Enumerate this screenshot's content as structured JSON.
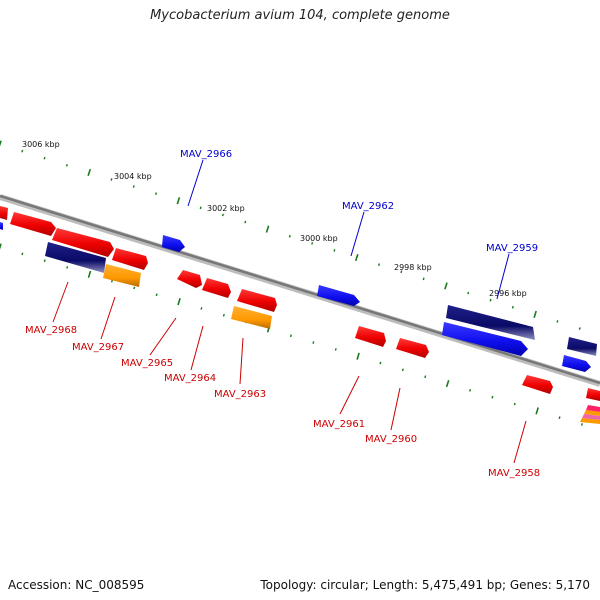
{
  "title": "Mycobacterium avium 104, complete genome",
  "footer": {
    "accession": "Accession: NC_008595",
    "summary": "Topology: circular; Length: 5,475,491 bp; Genes: 5,170"
  },
  "colors": {
    "backbone": "#888888",
    "tick_green": "#1a7a1a",
    "label_blue": "#0000cc",
    "label_red": "#cc0000"
  },
  "ticks": [
    {
      "label": "3006 kbp"
    },
    {
      "label": "3004 kbp"
    },
    {
      "label": "3002 kbp"
    },
    {
      "label": "3000 kbp"
    },
    {
      "label": "2998 kbp"
    },
    {
      "label": "2996 kbp"
    }
  ],
  "genes": [
    {
      "label": "MAV_2966",
      "strand": "blue"
    },
    {
      "label": "MAV_2962",
      "strand": "blue"
    },
    {
      "label": "MAV_2959",
      "strand": "blue"
    },
    {
      "label": "MAV_2968",
      "strand": "red"
    },
    {
      "label": "MAV_2967",
      "strand": "red"
    },
    {
      "label": "MAV_2965",
      "strand": "red"
    },
    {
      "label": "MAV_2964",
      "strand": "red"
    },
    {
      "label": "MAV_2963",
      "strand": "red"
    },
    {
      "label": "MAV_2961",
      "strand": "red"
    },
    {
      "label": "MAV_2960",
      "strand": "red"
    },
    {
      "label": "MAV_2958",
      "strand": "red"
    }
  ]
}
